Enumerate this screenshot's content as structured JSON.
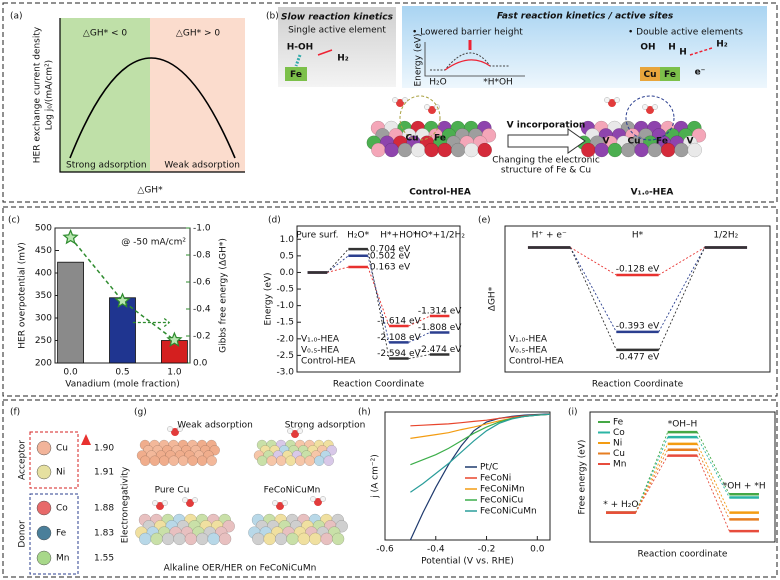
{
  "panel_a": {
    "label": "(a)",
    "ylabel": "HER exchange current density",
    "ylabel2": "Log j₀/(mA/cm²)",
    "left_region": "△GH* < 0",
    "right_region": "△GH* > 0",
    "left_note": "Strong adsorption",
    "right_note": "Weak adsorption",
    "xlabel": "△GH*"
  },
  "panel_b": {
    "label": "(b)",
    "slow_title": "Slow reaction kinetics",
    "slow_sub": "Single active element",
    "molecule": "H-OH",
    "product": "H₂",
    "site": "Fe",
    "fast_title": "Fast reaction kinetics / active sites",
    "bullet1": "• Lowered barrier height",
    "bullet2": "• Double active elements",
    "energy_axis": "Energy (eV)",
    "state1": "H₂O",
    "state2": "*H*OH",
    "double_sites": [
      "Cu",
      "Fe"
    ],
    "fast_labels": [
      "OH",
      "H",
      "H",
      "H₂",
      "e⁻"
    ],
    "arrow_label": "V incorporation",
    "arrow_note": [
      "Changing the electronic",
      "structure of Fe & Cu"
    ],
    "left_model": "Control-HEA",
    "right_model": "V₁.₀-HEA",
    "atoms_left": [
      "Cu",
      "Fe"
    ],
    "atoms_right": [
      "V",
      "Cu",
      "Fe",
      "V"
    ]
  },
  "panel_f": {
    "label": "(f)",
    "acceptor": "Acceptor",
    "donor": "Donor",
    "axis": "Electronegativity",
    "elements": [
      {
        "symbol": "Cu",
        "value": "1.90"
      },
      {
        "symbol": "Ni",
        "value": "1.91"
      },
      {
        "symbol": "Co",
        "value": "1.88"
      },
      {
        "symbol": "Fe",
        "value": "1.83"
      },
      {
        "symbol": "Mn",
        "value": "1.55"
      }
    ]
  },
  "panel_g": {
    "label": "(g)",
    "note1": "Weak adsorption",
    "note2": "Strong adsorption",
    "caption1": "Pure Cu",
    "caption2": "FeCoNiCuMn",
    "caption3": "Alkaline OER/HER on FeCoNiCuMn"
  },
  "chart_data": [
    {
      "type": "bar",
      "label": "(c)",
      "title": "@ -50 mA/cm²",
      "xlabel": "Vanadium (mole fraction)",
      "ylabel": "HER overpotential (mV)",
      "y2label": "Gibbs free energy (ΔGH*)",
      "x": [
        0,
        0.5,
        1.0
      ],
      "xlim": [
        -0.15,
        1.15
      ],
      "xticks": [
        {
          "value": 0,
          "label": "0.0"
        },
        0.5,
        {
          "value": 1,
          "label": "1.0"
        }
      ],
      "ylim": [
        200,
        500
      ],
      "yticks": [
        200,
        250,
        300,
        350,
        400,
        450,
        500
      ],
      "y2lim": [
        0,
        -1.0
      ],
      "y2ticks": [
        {
          "value": 0,
          "label": "0.0"
        },
        -0.2,
        -0.4,
        -0.6,
        -0.8,
        {
          "value": -1,
          "label": "-1.0"
        }
      ],
      "series": [
        {
          "colors": [
            "#8a8a8a",
            "#1f3590",
            "#d41f1f"
          ],
          "values": [
            424,
            345,
            250
          ]
        },
        {
          "axis": "y2",
          "color": "#2e8b2e",
          "values": [
            -0.93,
            -0.46,
            -0.17
          ]
        }
      ]
    },
    {
      "type": "level",
      "label": "(d)",
      "ylabel": "Energy (eV)",
      "xlabel": "Reaction Coordinate",
      "categories": [
        "Pure surf.",
        "H₂O*",
        "H*+HO*",
        "HO*+1/2H₂"
      ],
      "ylim": [
        -3.0,
        1.4
      ],
      "yticks": [
        {
          "value": 1,
          "label": "1.0"
        },
        0.5,
        {
          "value": 0,
          "label": "0.0"
        },
        -0.5,
        {
          "value": -1,
          "label": "-1.0"
        },
        -1.5,
        {
          "value": -2,
          "label": "-2.0"
        },
        -2.5,
        {
          "value": -3,
          "label": "-3.0"
        }
      ],
      "series": [
        {
          "name": "V₁.₀-HEA",
          "color": "#e8312f",
          "values": [
            0,
            0.163,
            -1.614,
            -1.314
          ],
          "value_labels": [
            null,
            "0.163 eV",
            "-1.614 eV",
            "-1.314 eV"
          ]
        },
        {
          "name": "V₀.₅-HEA",
          "color": "#2b3f8f",
          "values": [
            0,
            0.502,
            -2.108,
            -1.808
          ],
          "value_labels": [
            null,
            "0.502 eV",
            "-2.108 eV",
            "-1.808 eV"
          ]
        },
        {
          "name": "Control-HEA",
          "color": "#333333",
          "values": [
            0,
            0.704,
            -2.594,
            -2.474
          ],
          "value_labels": [
            null,
            "0.704 eV",
            "-2.594 eV",
            "-2.474 eV"
          ]
        }
      ]
    },
    {
      "type": "level",
      "label": "(e)",
      "ylabel": "ΔGH*",
      "xlabel": "Reaction Coordinate",
      "categories": [
        "H⁺ + e⁻",
        "H*",
        "1/2H₂"
      ],
      "ylim": [
        -0.58,
        0.1
      ],
      "series": [
        {
          "name": "V₁.₀-HEA",
          "color": "#e8312f",
          "values": [
            0,
            -0.128,
            0
          ],
          "value_labels": [
            null,
            "-0.128 eV",
            null
          ]
        },
        {
          "name": "V₀.₅-HEA",
          "color": "#2b3f8f",
          "values": [
            0,
            -0.393,
            0
          ],
          "value_labels": [
            null,
            "-0.393 eV",
            null
          ]
        },
        {
          "name": "Control-HEA",
          "color": "#333333",
          "values": [
            0,
            -0.477,
            0
          ],
          "value_labels": [
            null,
            "-0.477 eV",
            null
          ]
        }
      ]
    },
    {
      "type": "line",
      "label": "(h)",
      "xlabel": "Potential (V vs. RHE)",
      "ylabel": "j (A cm⁻²)",
      "x": [
        -0.5,
        -0.45,
        -0.4,
        -0.35,
        -0.3,
        -0.25,
        -0.2,
        -0.15,
        -0.1,
        -0.05,
        0,
        0.05
      ],
      "xlim": [
        -0.6,
        0.05
      ],
      "xticks": [
        -0.6,
        -0.4,
        -0.2,
        {
          "value": 0,
          "label": "0.0"
        }
      ],
      "ylim": [
        -1.0,
        0.02
      ],
      "series": [
        {
          "name": "Pt/C",
          "color": "#1f3a6e",
          "values": [
            -1.0,
            -0.78,
            -0.58,
            -0.4,
            -0.25,
            -0.13,
            -0.06,
            -0.03,
            -0.015,
            -0.005,
            0,
            0.005
          ]
        },
        {
          "name": "FeCoNi",
          "color": "#e8452c",
          "values": [
            -0.09,
            -0.085,
            -0.08,
            -0.075,
            -0.065,
            -0.055,
            -0.045,
            -0.03,
            -0.02,
            -0.01,
            -0.003,
            0.002
          ]
        },
        {
          "name": "FeCoNiMn",
          "color": "#f39c12",
          "values": [
            -0.19,
            -0.175,
            -0.16,
            -0.145,
            -0.12,
            -0.1,
            -0.075,
            -0.05,
            -0.03,
            -0.015,
            -0.005,
            0.002
          ]
        },
        {
          "name": "FeCoNiCu",
          "color": "#3cae4a",
          "values": [
            -0.4,
            -0.36,
            -0.32,
            -0.27,
            -0.21,
            -0.15,
            -0.1,
            -0.06,
            -0.03,
            -0.015,
            -0.005,
            0.002
          ]
        },
        {
          "name": "FeCoNiCuMn",
          "color": "#2a9d9a",
          "values": [
            -0.62,
            -0.55,
            -0.47,
            -0.39,
            -0.3,
            -0.21,
            -0.13,
            -0.07,
            -0.035,
            -0.015,
            -0.005,
            0.002
          ]
        }
      ]
    },
    {
      "type": "level",
      "label": "(i)",
      "ylabel": "Free energy (eV)",
      "xlabel": "Reaction coordinate",
      "categories": [
        "* + H₂O",
        "*OH–H",
        "*OH + *H"
      ],
      "ylim": [
        -0.35,
        1.2
      ],
      "series": [
        {
          "name": "Fe",
          "color": "#45a845",
          "values": [
            0,
            0.96,
            0.22
          ]
        },
        {
          "name": "Co",
          "color": "#2bb5a5",
          "values": [
            0,
            0.9,
            0.18
          ]
        },
        {
          "name": "Ni",
          "color": "#f39c12",
          "values": [
            0,
            0.82,
            0.0
          ]
        },
        {
          "name": "Cu",
          "color": "#e67e22",
          "values": [
            0,
            0.75,
            -0.08
          ]
        },
        {
          "name": "Mn",
          "color": "#e74c3c",
          "values": [
            0,
            0.68,
            -0.22
          ]
        }
      ]
    }
  ]
}
